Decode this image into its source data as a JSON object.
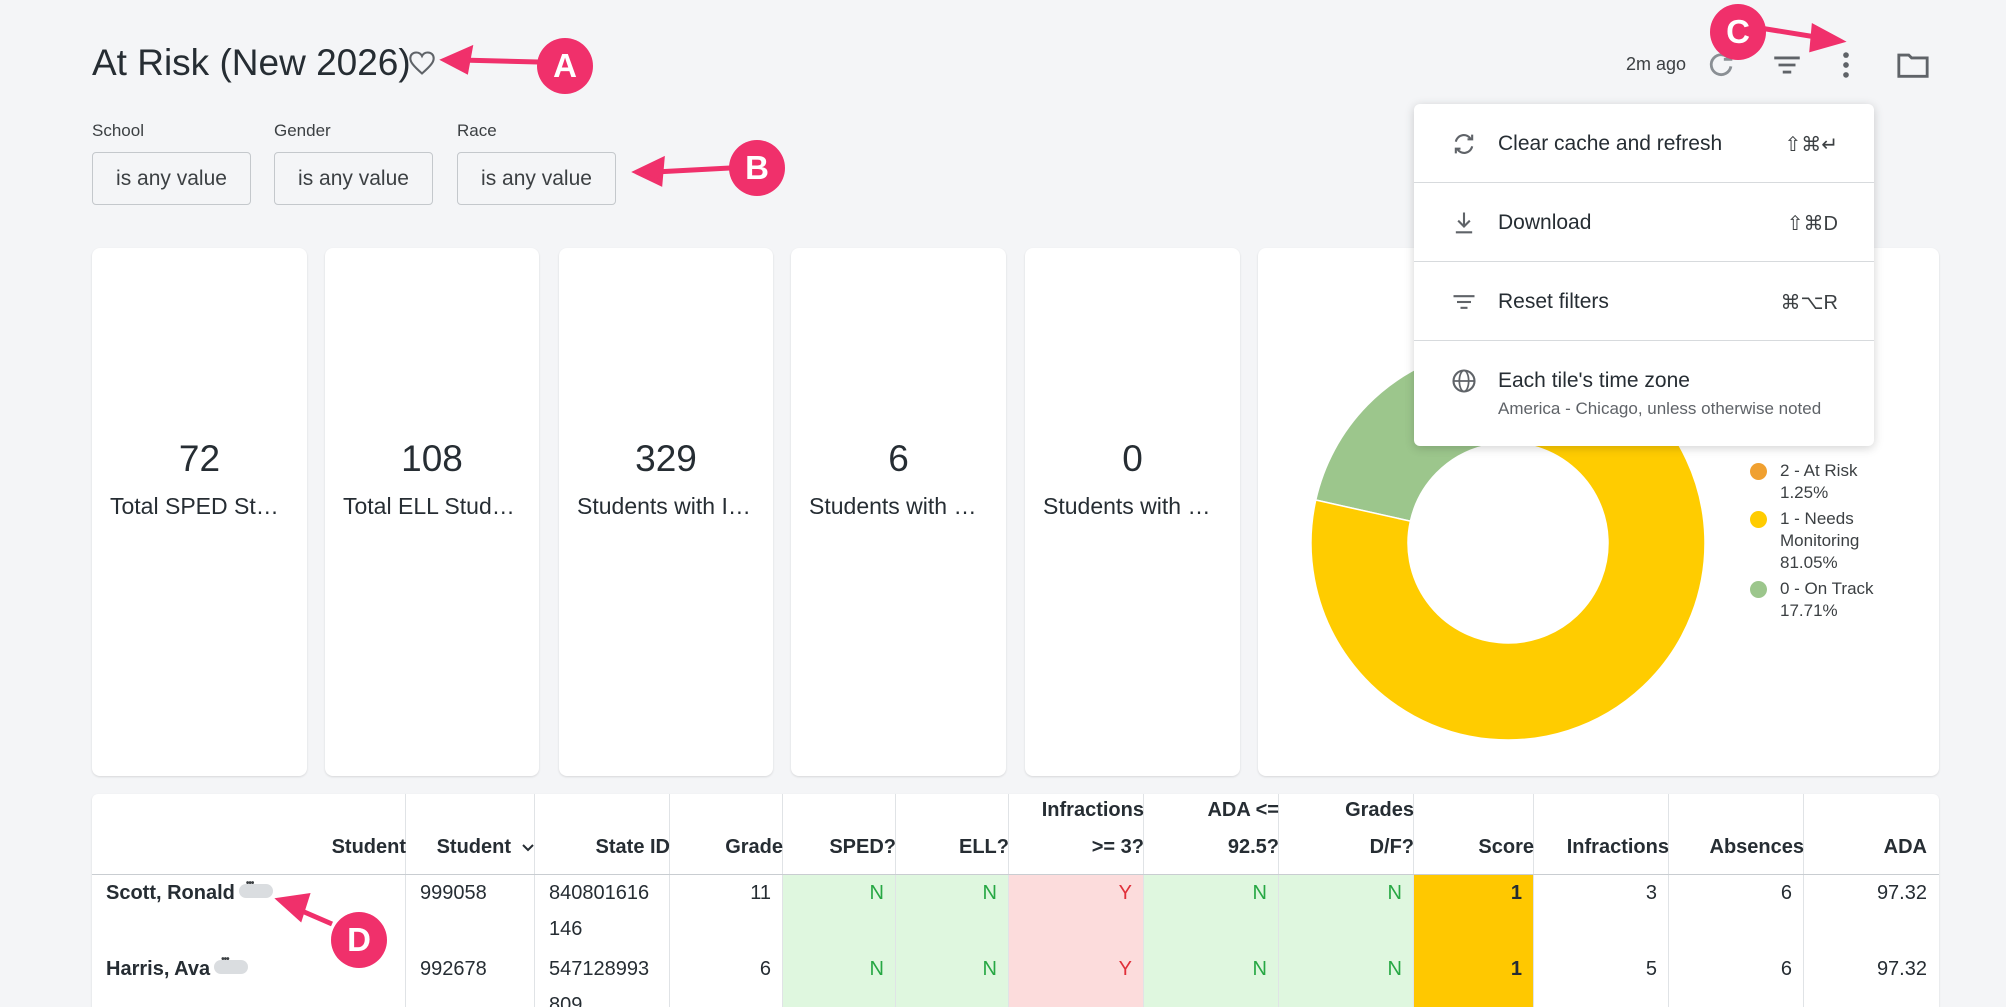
{
  "header": {
    "title": "At Risk (New 2026)",
    "updated": "2m ago"
  },
  "filters": [
    {
      "label": "School",
      "value": "is any value"
    },
    {
      "label": "Gender",
      "value": "is any value"
    },
    {
      "label": "Race",
      "value": "is any value"
    }
  ],
  "tiles": [
    {
      "value": "72",
      "label": "Total SPED Students"
    },
    {
      "value": "108",
      "label": "Total ELL Students"
    },
    {
      "value": "329",
      "label": "Students with Infractions"
    },
    {
      "value": "6",
      "label": "Students with Grades D/F"
    },
    {
      "value": "0",
      "label": "Students with Low ADA"
    }
  ],
  "menu": {
    "items": [
      {
        "label": "Clear cache and refresh",
        "shortcut": "⇧⌘↵"
      },
      {
        "label": "Download",
        "shortcut": "⇧⌘D"
      },
      {
        "label": "Reset filters",
        "shortcut": "⌘⌥R"
      },
      {
        "label": "Each tile's time zone",
        "sub": "America - Chicago, unless otherwise noted"
      }
    ]
  },
  "chart_data": {
    "type": "pie",
    "series": [
      {
        "name": "2 - At Risk",
        "value": 1.25,
        "label": "1.25%",
        "color": "#f0a030"
      },
      {
        "name": "1 - Needs Monitoring",
        "value": 81.05,
        "label": "81.05%",
        "color": "#ffcc00"
      },
      {
        "name": "0 - On Track",
        "value": 17.71,
        "label": "17.71%",
        "color": "#9cc68c"
      }
    ],
    "legend": "right"
  },
  "legend": {
    "at_risk": "2 - At Risk",
    "at_risk_pct": "1.25%",
    "needs_a": "1 - Needs",
    "needs_b": "Monitoring",
    "needs_pct": "81.05%",
    "on_track": "0 - On Track",
    "on_track_pct": "17.71%"
  },
  "table": {
    "headers": {
      "student_name": "Student",
      "student_id": "Student",
      "state_id": "State ID",
      "grade": "Grade",
      "sped": "SPED?",
      "ell": "ELL?",
      "infr_a": "Infractions",
      "infr_b": ">= 3?",
      "ada_a": "ADA <=",
      "ada_b": "92.5?",
      "gr_a": "Grades",
      "gr_b": "D/F?",
      "score": "Score",
      "infractions": "Infractions",
      "absences": "Absences",
      "ada": "ADA"
    },
    "rows": [
      {
        "name": "Scott, Ronald",
        "id": "999058",
        "state_a": "840801616",
        "state_b": "146",
        "grade": "11",
        "sped": "N",
        "ell": "N",
        "infr": "Y",
        "ada_flag": "N",
        "grades_flag": "N",
        "score": "1",
        "infractions": "3",
        "absences": "6",
        "ada": "97.32"
      },
      {
        "name": "Harris, Ava",
        "id": "992678",
        "state_a": "547128993",
        "state_b": "809",
        "grade": "6",
        "sped": "N",
        "ell": "N",
        "infr": "Y",
        "ada_flag": "N",
        "grades_flag": "N",
        "score": "1",
        "infractions": "5",
        "absences": "6",
        "ada": "97.32"
      }
    ]
  },
  "annotations": [
    "A",
    "B",
    "C",
    "D"
  ],
  "colors": {
    "accent": "#f0306b",
    "green_bg": "#dff7df",
    "red_bg": "#fcdcdc",
    "score_bg": "#ffc800"
  }
}
